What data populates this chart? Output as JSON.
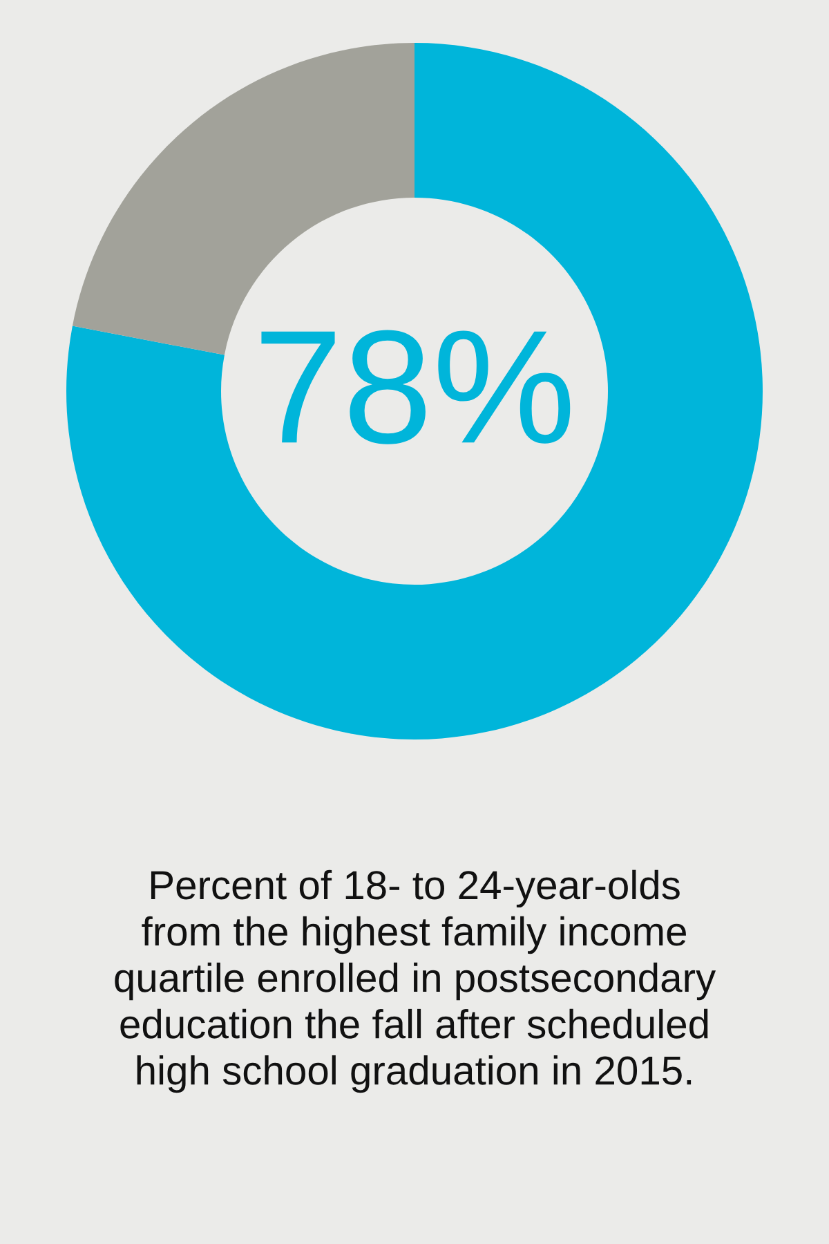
{
  "chart_data": {
    "type": "donut",
    "categories": [
      null,
      null
    ],
    "values": [
      78,
      22
    ],
    "colors": [
      "#00b5da",
      "#a2a29a"
    ],
    "annotations": [
      "78%",
      "Percent of 18- to 24-year-olds\nfrom the highest family income\nquartile enrolled in postsecondary\neducation the fall after scheduled\nhigh school graduation in 2015."
    ],
    "legend": false
  }
}
